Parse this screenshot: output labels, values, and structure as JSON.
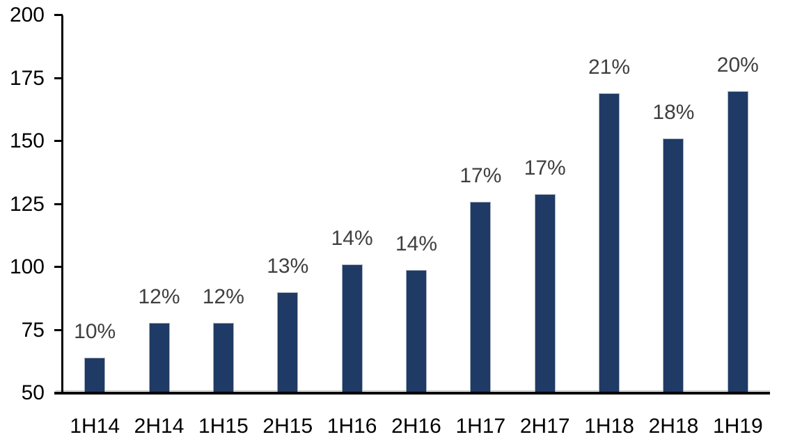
{
  "chart_data": {
    "type": "bar",
    "title": "",
    "xlabel": "",
    "ylabel": "",
    "legend": "none",
    "grid": false,
    "categories": [
      "1H14",
      "2H14",
      "1H15",
      "2H15",
      "1H16",
      "2H16",
      "1H17",
      "2H17",
      "1H18",
      "2H18",
      "1H19"
    ],
    "values": [
      64,
      78,
      78,
      90,
      101,
      99,
      126,
      129,
      169,
      151,
      170
    ],
    "data_labels": [
      "10%",
      "12%",
      "12%",
      "13%",
      "14%",
      "14%",
      "17%",
      "17%",
      "21%",
      "18%",
      "20%"
    ],
    "y_ticks": [
      50,
      75,
      100,
      125,
      150,
      175,
      200
    ],
    "ylim": [
      50,
      200
    ],
    "colors": {
      "bar_fill": "#1F3A64",
      "bar_border": "#A9B2C2",
      "data_label": "#3F3F3F",
      "axis_text": "#000000",
      "axis_line": "#000000",
      "baseline_hairline": "#BFBFBF",
      "background": "#FFFFFF"
    }
  }
}
